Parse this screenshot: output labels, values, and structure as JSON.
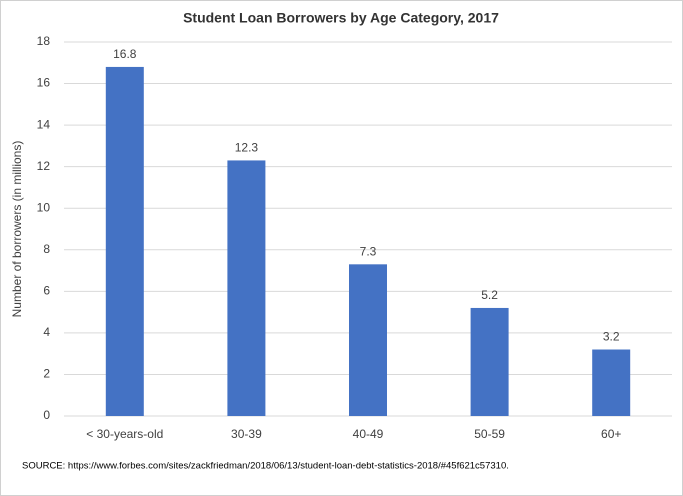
{
  "chart_data": {
    "type": "bar",
    "title": "Student Loan Borrowers by Age Category, 2017",
    "y_label": "Number of borrowers (in millions)",
    "categories": [
      "< 30-years-old",
      "30-39",
      "40-49",
      "50-59",
      "60+"
    ],
    "values": [
      16.8,
      12.3,
      7.3,
      5.2,
      3.2
    ],
    "color": "#4472c4",
    "ylim": [
      0,
      18
    ],
    "yticks": [
      0,
      2,
      4,
      6,
      8,
      10,
      12,
      14,
      16,
      18
    ],
    "grid": true,
    "source": "SOURCE: https://www.forbes.com/sites/zackfriedman/2018/06/13/student-loan-debt-statistics-2018/#45f621c57310."
  }
}
